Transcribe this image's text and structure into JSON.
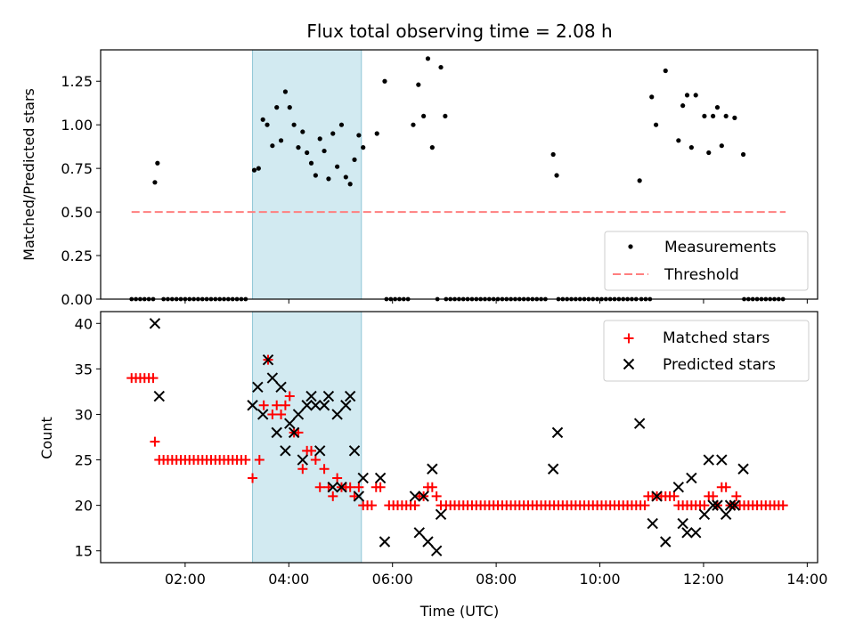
{
  "title": "Flux total observing time = 2.08 h",
  "colors": {
    "measure": "#000000",
    "threshold": "#ff7f7f",
    "matched": "#ff0000",
    "predicted": "#000000",
    "shade": "#add8e6"
  },
  "chart_data": [
    {
      "type": "scatter",
      "ylabel": "Matched/Predicted stars",
      "xlim_hours": [
        0.37,
        14.2
      ],
      "ylim": [
        0,
        1.43
      ],
      "yticks": [
        "0.00",
        "0.25",
        "0.50",
        "0.75",
        "1.00",
        "1.25"
      ],
      "yticks_values": [
        0,
        0.25,
        0.5,
        0.75,
        1.0,
        1.25
      ],
      "shaded_span": [
        "03:18",
        "05:24"
      ],
      "legend_position": "lower right",
      "legend": [
        "Measurements",
        "Threshold"
      ],
      "threshold": {
        "name": "Threshold",
        "value": 0.5,
        "x_range": [
          "00:58",
          "13:35"
        ]
      },
      "series": [
        {
          "name": "Measurements",
          "zero_ranges": [
            [
              "00:58",
              "01:23"
            ],
            [
              "01:35",
              "03:14"
            ],
            [
              "05:53",
              "06:20"
            ],
            [
              "06:52",
              "06:52"
            ],
            [
              "07:02",
              "09:00"
            ],
            [
              "09:12",
              "10:43"
            ],
            [
              "10:48",
              "10:58"
            ],
            [
              "12:47",
              "13:35"
            ]
          ],
          "points": [
            [
              "01:25",
              0.67
            ],
            [
              "01:28",
              0.78
            ],
            [
              "03:20",
              0.74
            ],
            [
              "03:25",
              0.75
            ],
            [
              "03:30",
              1.03
            ],
            [
              "03:35",
              1.0
            ],
            [
              "03:41",
              0.88
            ],
            [
              "03:46",
              1.1
            ],
            [
              "03:51",
              0.91
            ],
            [
              "03:56",
              1.19
            ],
            [
              "04:01",
              1.1
            ],
            [
              "04:06",
              1.0
            ],
            [
              "04:11",
              0.87
            ],
            [
              "04:16",
              0.96
            ],
            [
              "04:21",
              0.84
            ],
            [
              "04:26",
              0.78
            ],
            [
              "04:31",
              0.71
            ],
            [
              "04:36",
              0.92
            ],
            [
              "04:41",
              0.85
            ],
            [
              "04:46",
              0.69
            ],
            [
              "04:51",
              0.95
            ],
            [
              "04:56",
              0.76
            ],
            [
              "05:01",
              1.0
            ],
            [
              "05:06",
              0.7
            ],
            [
              "05:11",
              0.66
            ],
            [
              "05:16",
              0.8
            ],
            [
              "05:21",
              0.94
            ],
            [
              "05:26",
              0.87
            ],
            [
              "05:42",
              0.95
            ],
            [
              "05:51",
              1.25
            ],
            [
              "06:24",
              1.0
            ],
            [
              "06:30",
              1.23
            ],
            [
              "06:36",
              1.05
            ],
            [
              "06:41",
              1.38
            ],
            [
              "06:46",
              0.87
            ],
            [
              "06:56",
              1.33
            ],
            [
              "07:01",
              1.05
            ],
            [
              "09:06",
              0.83
            ],
            [
              "09:10",
              0.71
            ],
            [
              "10:46",
              0.68
            ],
            [
              "11:00",
              1.16
            ],
            [
              "11:05",
              1.0
            ],
            [
              "11:16",
              1.31
            ],
            [
              "11:31",
              0.91
            ],
            [
              "11:36",
              1.11
            ],
            [
              "11:41",
              1.17
            ],
            [
              "11:46",
              0.87
            ],
            [
              "11:51",
              1.17
            ],
            [
              "12:01",
              1.05
            ],
            [
              "12:06",
              0.84
            ],
            [
              "12:11",
              1.05
            ],
            [
              "12:16",
              1.1
            ],
            [
              "12:21",
              0.88
            ],
            [
              "12:26",
              1.05
            ],
            [
              "12:36",
              1.04
            ],
            [
              "12:46",
              0.83
            ]
          ]
        }
      ]
    },
    {
      "type": "scatter",
      "xlabel": "Time (UTC)",
      "ylabel": "Count",
      "xlim_hours": [
        0.37,
        14.2
      ],
      "ylim": [
        13.7,
        41.3
      ],
      "xticks": [
        "02:00",
        "04:00",
        "06:00",
        "08:00",
        "10:00",
        "12:00",
        "14:00"
      ],
      "xticks_hours": [
        2,
        4,
        6,
        8,
        10,
        12,
        14
      ],
      "yticks": [
        "15",
        "20",
        "25",
        "30",
        "35",
        "40"
      ],
      "yticks_values": [
        15,
        20,
        25,
        30,
        35,
        40
      ],
      "shaded_span": [
        "03:18",
        "05:24"
      ],
      "legend_position": "upper right",
      "legend": [
        "Matched stars",
        "Predicted stars"
      ],
      "series": [
        {
          "name": "Matched stars",
          "marker": "plus",
          "constant_runs": [
            {
              "from": "01:30",
              "to": "03:12",
              "value": 25
            },
            {
              "from": "07:02",
              "to": "10:52",
              "value": 20
            },
            {
              "from": "12:42",
              "to": "13:35",
              "value": 20
            }
          ],
          "points": [
            [
              "00:58",
              34
            ],
            [
              "01:03",
              34
            ],
            [
              "01:08",
              34
            ],
            [
              "01:13",
              34
            ],
            [
              "01:18",
              34
            ],
            [
              "01:23",
              34
            ],
            [
              "01:25",
              27
            ],
            [
              "03:18",
              23
            ],
            [
              "03:26",
              25
            ],
            [
              "03:31",
              31
            ],
            [
              "03:36",
              36
            ],
            [
              "03:41",
              30
            ],
            [
              "03:46",
              31
            ],
            [
              "03:51",
              30
            ],
            [
              "03:56",
              31
            ],
            [
              "04:01",
              32
            ],
            [
              "04:06",
              28
            ],
            [
              "04:11",
              28
            ],
            [
              "04:16",
              24
            ],
            [
              "04:21",
              26
            ],
            [
              "04:26",
              26
            ],
            [
              "04:31",
              25
            ],
            [
              "04:36",
              22
            ],
            [
              "04:41",
              24
            ],
            [
              "04:46",
              22
            ],
            [
              "04:51",
              21
            ],
            [
              "04:56",
              23
            ],
            [
              "05:01",
              22
            ],
            [
              "05:06",
              22
            ],
            [
              "05:11",
              22
            ],
            [
              "05:16",
              21
            ],
            [
              "05:21",
              22
            ],
            [
              "05:26",
              20
            ],
            [
              "05:31",
              20
            ],
            [
              "05:36",
              20
            ],
            [
              "05:41",
              22
            ],
            [
              "05:46",
              22
            ],
            [
              "05:56",
              20
            ],
            [
              "06:01",
              20
            ],
            [
              "06:06",
              20
            ],
            [
              "06:11",
              20
            ],
            [
              "06:16",
              20
            ],
            [
              "06:21",
              20
            ],
            [
              "06:26",
              20
            ],
            [
              "06:31",
              21
            ],
            [
              "06:36",
              21
            ],
            [
              "06:41",
              22
            ],
            [
              "06:46",
              22
            ],
            [
              "06:51",
              21
            ],
            [
              "06:56",
              20
            ],
            [
              "10:56",
              21
            ],
            [
              "11:01",
              21
            ],
            [
              "11:06",
              21
            ],
            [
              "11:11",
              21
            ],
            [
              "11:16",
              21
            ],
            [
              "11:21",
              21
            ],
            [
              "11:26",
              21
            ],
            [
              "11:31",
              20
            ],
            [
              "11:36",
              20
            ],
            [
              "11:41",
              20
            ],
            [
              "11:46",
              20
            ],
            [
              "11:51",
              20
            ],
            [
              "11:56",
              20
            ],
            [
              "12:01",
              20
            ],
            [
              "12:06",
              21
            ],
            [
              "12:11",
              21
            ],
            [
              "12:16",
              20
            ],
            [
              "12:21",
              22
            ],
            [
              "12:26",
              22
            ],
            [
              "12:31",
              20
            ],
            [
              "12:36",
              20
            ],
            [
              "12:38",
              21
            ]
          ]
        },
        {
          "name": "Predicted stars",
          "marker": "x",
          "points": [
            [
              "01:25",
              40
            ],
            [
              "01:30",
              32
            ],
            [
              "03:18",
              31
            ],
            [
              "03:24",
              33
            ],
            [
              "03:30",
              30
            ],
            [
              "03:36",
              36
            ],
            [
              "03:41",
              34
            ],
            [
              "03:46",
              28
            ],
            [
              "03:51",
              33
            ],
            [
              "03:56",
              26
            ],
            [
              "04:01",
              29
            ],
            [
              "04:06",
              28
            ],
            [
              "04:11",
              30
            ],
            [
              "04:16",
              25
            ],
            [
              "04:21",
              31
            ],
            [
              "04:26",
              32
            ],
            [
              "04:31",
              31
            ],
            [
              "04:36",
              26
            ],
            [
              "04:41",
              31
            ],
            [
              "04:46",
              32
            ],
            [
              "04:51",
              22
            ],
            [
              "04:56",
              30
            ],
            [
              "05:01",
              22
            ],
            [
              "05:06",
              31
            ],
            [
              "05:11",
              32
            ],
            [
              "05:16",
              26
            ],
            [
              "05:21",
              21
            ],
            [
              "05:26",
              23
            ],
            [
              "05:46",
              23
            ],
            [
              "05:51",
              16
            ],
            [
              "06:26",
              21
            ],
            [
              "06:31",
              17
            ],
            [
              "06:36",
              21
            ],
            [
              "06:41",
              16
            ],
            [
              "06:46",
              24
            ],
            [
              "06:51",
              15
            ],
            [
              "06:56",
              19
            ],
            [
              "09:06",
              24
            ],
            [
              "09:11",
              28
            ],
            [
              "10:46",
              29
            ],
            [
              "11:01",
              18
            ],
            [
              "11:06",
              21
            ],
            [
              "11:16",
              16
            ],
            [
              "11:31",
              22
            ],
            [
              "11:36",
              18
            ],
            [
              "11:41",
              17
            ],
            [
              "11:46",
              23
            ],
            [
              "11:51",
              17
            ],
            [
              "12:01",
              19
            ],
            [
              "12:06",
              25
            ],
            [
              "12:11",
              20
            ],
            [
              "12:16",
              20
            ],
            [
              "12:21",
              25
            ],
            [
              "12:26",
              19
            ],
            [
              "12:31",
              20
            ],
            [
              "12:36",
              20
            ],
            [
              "12:46",
              24
            ]
          ]
        }
      ]
    }
  ]
}
